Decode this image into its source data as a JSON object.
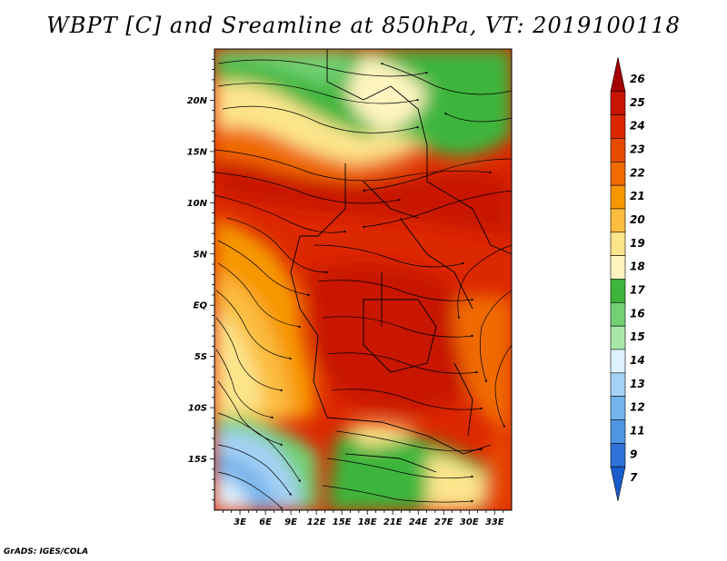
{
  "title": "WBPT [C] and Sreamline at 850hPa, VT: 2019100118",
  "credit": "GrADS: IGES/COLA",
  "map": {
    "lon_range": [
      0,
      35
    ],
    "lat_range": [
      -20,
      25
    ],
    "lon_ticks": [
      "3E",
      "6E",
      "9E",
      "12E",
      "15E",
      "18E",
      "21E",
      "24E",
      "27E",
      "30E",
      "33E"
    ],
    "lon_values": [
      3,
      6,
      9,
      12,
      15,
      18,
      21,
      24,
      27,
      30,
      33
    ],
    "lat_ticks": [
      "20N",
      "15N",
      "10N",
      "5N",
      "EQ",
      "5S",
      "10S",
      "15S"
    ],
    "lat_values": [
      20,
      15,
      10,
      5,
      0,
      -5,
      -10,
      -15
    ]
  },
  "colorbar": {
    "labels": [
      "26",
      "25",
      "24",
      "23",
      "22",
      "21",
      "20",
      "19",
      "18",
      "17",
      "16",
      "15",
      "14",
      "13",
      "12",
      "11",
      "9",
      "7"
    ],
    "colors": [
      "#a50000",
      "#c81400",
      "#dc2800",
      "#e64a00",
      "#ef6a00",
      "#f79700",
      "#fbbd40",
      "#fde58c",
      "#fff4c0",
      "#3db53d",
      "#72d072",
      "#a8e6a8",
      "#dff2ff",
      "#a6d2f5",
      "#74b4ec",
      "#4f95e3",
      "#2f73d8",
      "#1a5ccc"
    ]
  }
}
